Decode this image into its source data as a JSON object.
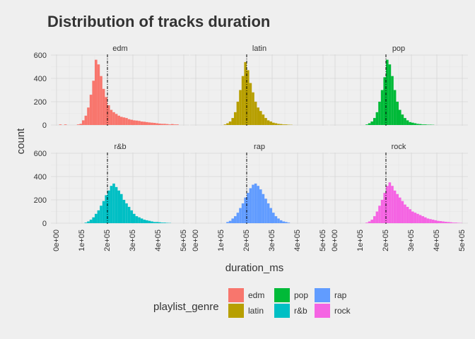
{
  "chart_data": {
    "type": "histogram",
    "title": "Distribution of tracks duration",
    "xlabel": "duration_ms",
    "ylabel": "count",
    "xlim": [
      0,
      500000
    ],
    "ylim": [
      0,
      600
    ],
    "x_ticks": [
      0,
      100000,
      200000,
      300000,
      400000,
      500000
    ],
    "x_tick_labels": [
      "0e+00",
      "1e+05",
      "2e+05",
      "3e+05",
      "4e+05",
      "5e+05"
    ],
    "y_ticks": [
      0,
      200,
      400,
      600
    ],
    "y_tick_labels": [
      "0",
      "200",
      "400",
      "600"
    ],
    "grid": true,
    "bin_width": 10000,
    "reference_line": {
      "x": 200000,
      "style": "dashed"
    },
    "legend": {
      "title": "playlist_genre",
      "position": "bottom",
      "items": [
        {
          "label": "edm",
          "color": "#F8766D"
        },
        {
          "label": "latin",
          "color": "#B79F00"
        },
        {
          "label": "pop",
          "color": "#00BA38"
        },
        {
          "label": "r&b",
          "color": "#00BFC4"
        },
        {
          "label": "rap",
          "color": "#619CFF"
        },
        {
          "label": "rock",
          "color": "#F564E3"
        }
      ]
    },
    "facets": [
      {
        "name": "edm",
        "color": "#F8766D",
        "bin_start": 0,
        "counts": [
          0,
          5,
          0,
          5,
          0,
          0,
          0,
          0,
          5,
          10,
          40,
          80,
          150,
          260,
          380,
          560,
          520,
          420,
          310,
          240,
          170,
          130,
          110,
          95,
          80,
          70,
          65,
          60,
          50,
          45,
          40,
          38,
          35,
          30,
          28,
          25,
          22,
          20,
          18,
          15,
          12,
          10,
          10,
          8,
          5,
          8,
          5,
          5,
          0,
          0
        ]
      },
      {
        "name": "latin",
        "color": "#B79F00",
        "bin_start": 0,
        "counts": [
          0,
          0,
          0,
          0,
          0,
          0,
          0,
          0,
          0,
          0,
          0,
          5,
          15,
          30,
          60,
          110,
          200,
          300,
          420,
          540,
          470,
          360,
          280,
          200,
          150,
          120,
          90,
          60,
          40,
          30,
          20,
          15,
          10,
          8,
          5,
          5,
          3,
          2,
          0,
          0,
          0,
          0,
          0,
          0,
          0,
          0,
          0,
          0,
          0,
          0
        ]
      },
      {
        "name": "pop",
        "color": "#00BA38",
        "bin_start": 0,
        "counts": [
          0,
          0,
          0,
          0,
          0,
          0,
          0,
          0,
          0,
          0,
          0,
          0,
          5,
          15,
          30,
          60,
          110,
          200,
          300,
          410,
          560,
          520,
          420,
          300,
          200,
          130,
          90,
          60,
          40,
          25,
          20,
          15,
          10,
          8,
          5,
          5,
          3,
          3,
          2,
          0,
          0,
          0,
          0,
          0,
          0,
          0,
          0,
          0,
          0,
          0
        ]
      },
      {
        "name": "r&b",
        "color": "#00BFC4",
        "bin_start": 0,
        "counts": [
          0,
          0,
          0,
          0,
          0,
          0,
          0,
          0,
          0,
          0,
          0,
          5,
          15,
          30,
          50,
          80,
          110,
          150,
          190,
          240,
          280,
          320,
          340,
          310,
          280,
          250,
          200,
          170,
          140,
          110,
          80,
          60,
          50,
          40,
          30,
          25,
          20,
          15,
          10,
          10,
          8,
          5,
          5,
          3,
          2,
          0,
          0,
          0,
          0,
          0
        ]
      },
      {
        "name": "rap",
        "color": "#619CFF",
        "bin_start": 0,
        "counts": [
          0,
          0,
          0,
          0,
          0,
          0,
          0,
          0,
          0,
          0,
          0,
          0,
          10,
          20,
          40,
          60,
          90,
          130,
          170,
          220,
          260,
          300,
          330,
          340,
          320,
          290,
          250,
          210,
          170,
          130,
          90,
          60,
          40,
          25,
          15,
          10,
          5,
          0,
          0,
          0,
          0,
          0,
          0,
          0,
          0,
          0,
          0,
          0,
          0,
          0
        ]
      },
      {
        "name": "rock",
        "color": "#F564E3",
        "bin_start": 0,
        "counts": [
          0,
          0,
          0,
          0,
          0,
          0,
          0,
          0,
          0,
          0,
          0,
          0,
          5,
          15,
          30,
          60,
          100,
          150,
          200,
          260,
          320,
          350,
          320,
          280,
          250,
          220,
          190,
          160,
          140,
          120,
          100,
          90,
          80,
          70,
          60,
          50,
          40,
          35,
          30,
          25,
          20,
          18,
          15,
          12,
          10,
          8,
          5,
          5,
          3,
          2
        ]
      }
    ]
  }
}
